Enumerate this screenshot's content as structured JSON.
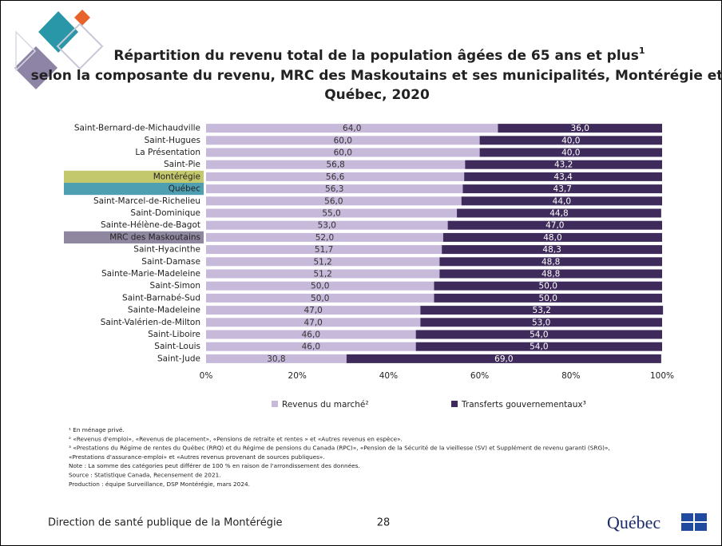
{
  "chart_data": {
    "type": "stacked-barh",
    "title": [
      "Répartition du revenu total de la population âgées de 65 ans et plus",
      "selon la composante du revenu, MRC des Maskoutains et ses municipalités, Montérégie et",
      "Québec, 2020"
    ],
    "title_sup": "1",
    "categories": [
      "Saint-Bernard-de-Michaudville",
      "Saint-Hugues",
      "La Présentation",
      "Saint-Pie",
      "Montérégie",
      "Québec",
      "Saint-Marcel-de-Richelieu",
      "Saint-Dominique",
      "Sainte-Hélène-de-Bagot",
      "MRC des Maskoutains",
      "Saint-Hyacinthe",
      "Saint-Damase",
      "Sainte-Marie-Madeleine",
      "Saint-Simon",
      "Saint-Barnabé-Sud",
      "Sainte-Madeleine",
      "Saint-Valérien-de-Milton",
      "Saint-Liboire",
      "Saint-Louis",
      "Saint-Jude"
    ],
    "category_highlights": [
      null,
      null,
      null,
      null,
      "#c4c86c",
      "#4f9fb2",
      null,
      null,
      null,
      "#8f879f",
      null,
      null,
      null,
      null,
      null,
      null,
      null,
      null,
      null,
      null
    ],
    "series": [
      {
        "name": "Revenus du marché²",
        "color": "#c7b9da",
        "label_color": "#333333",
        "values": [
          64.0,
          60.0,
          60.0,
          56.8,
          56.6,
          56.3,
          56.0,
          55.0,
          53.0,
          52.0,
          51.7,
          51.2,
          51.2,
          50.0,
          50.0,
          47.0,
          47.0,
          46.0,
          46.0,
          30.8
        ],
        "value_labels": [
          "64,0",
          "60,0",
          "60,0",
          "56,8",
          "56,6",
          "56,3",
          "56,0",
          "55,0",
          "53,0",
          "52,0",
          "51,7",
          "51,2",
          "51,2",
          "50,0",
          "50,0",
          "47,0",
          "47,0",
          "46,0",
          "46,0",
          "30,8"
        ]
      },
      {
        "name": "Transferts gouvernementaux³",
        "color": "#3e2b5b",
        "label_color": "#ffffff",
        "values": [
          36.0,
          40.0,
          40.0,
          43.2,
          43.4,
          43.7,
          44.0,
          44.8,
          47.0,
          48.0,
          48.3,
          48.8,
          48.8,
          50.0,
          50.0,
          53.2,
          53.0,
          54.0,
          54.0,
          69.0
        ],
        "value_labels": [
          "36,0",
          "40,0",
          "40,0",
          "43,2",
          "43,4",
          "43,7",
          "44,0",
          "44,8",
          "47,0",
          "48,0",
          "48,3",
          "48,8",
          "48,8",
          "50,0",
          "50,0",
          "53,2",
          "53,0",
          "54,0",
          "54,0",
          "69,0"
        ]
      }
    ],
    "xlim": [
      0,
      100
    ],
    "xticks": [
      {
        "value": 0,
        "label": "0%"
      },
      {
        "value": 20,
        "label": "20%"
      },
      {
        "value": 40,
        "label": "40%"
      },
      {
        "value": 60,
        "label": "60%"
      },
      {
        "value": 80,
        "label": "80%"
      },
      {
        "value": 100,
        "label": "100%"
      }
    ],
    "grid": false,
    "legend": "bottom"
  },
  "footnotes": [
    "¹ En ménage privé.",
    "² «Revenus d'emploi», «Revenus de placement», «Pensions de retraite et rentes » et  «Autres revenus en espèce».",
    "³ «Prestations du Régime de rentes du Québec (RRQ) et du Régime de pensions du Canada (RPC)», «Pension de la Sécurité de la vieillesse (SV) et Supplément de revenu garanti (SRG)»,",
    "«Prestations d'assurance-emploi» et «Autres revenus provenant de sources publiques».",
    "Note : La somme des catégories peut différer de 100 % en raison de l'arrondissement des données.",
    "Source : Statistique Canada, Recensement de 2021.",
    "Production : équipe Surveillance, DSP Montérégie, mars 2024."
  ],
  "footer": {
    "organization": "Direction de santé publique de la Montérégie",
    "page": "28",
    "logo": "Québec"
  }
}
